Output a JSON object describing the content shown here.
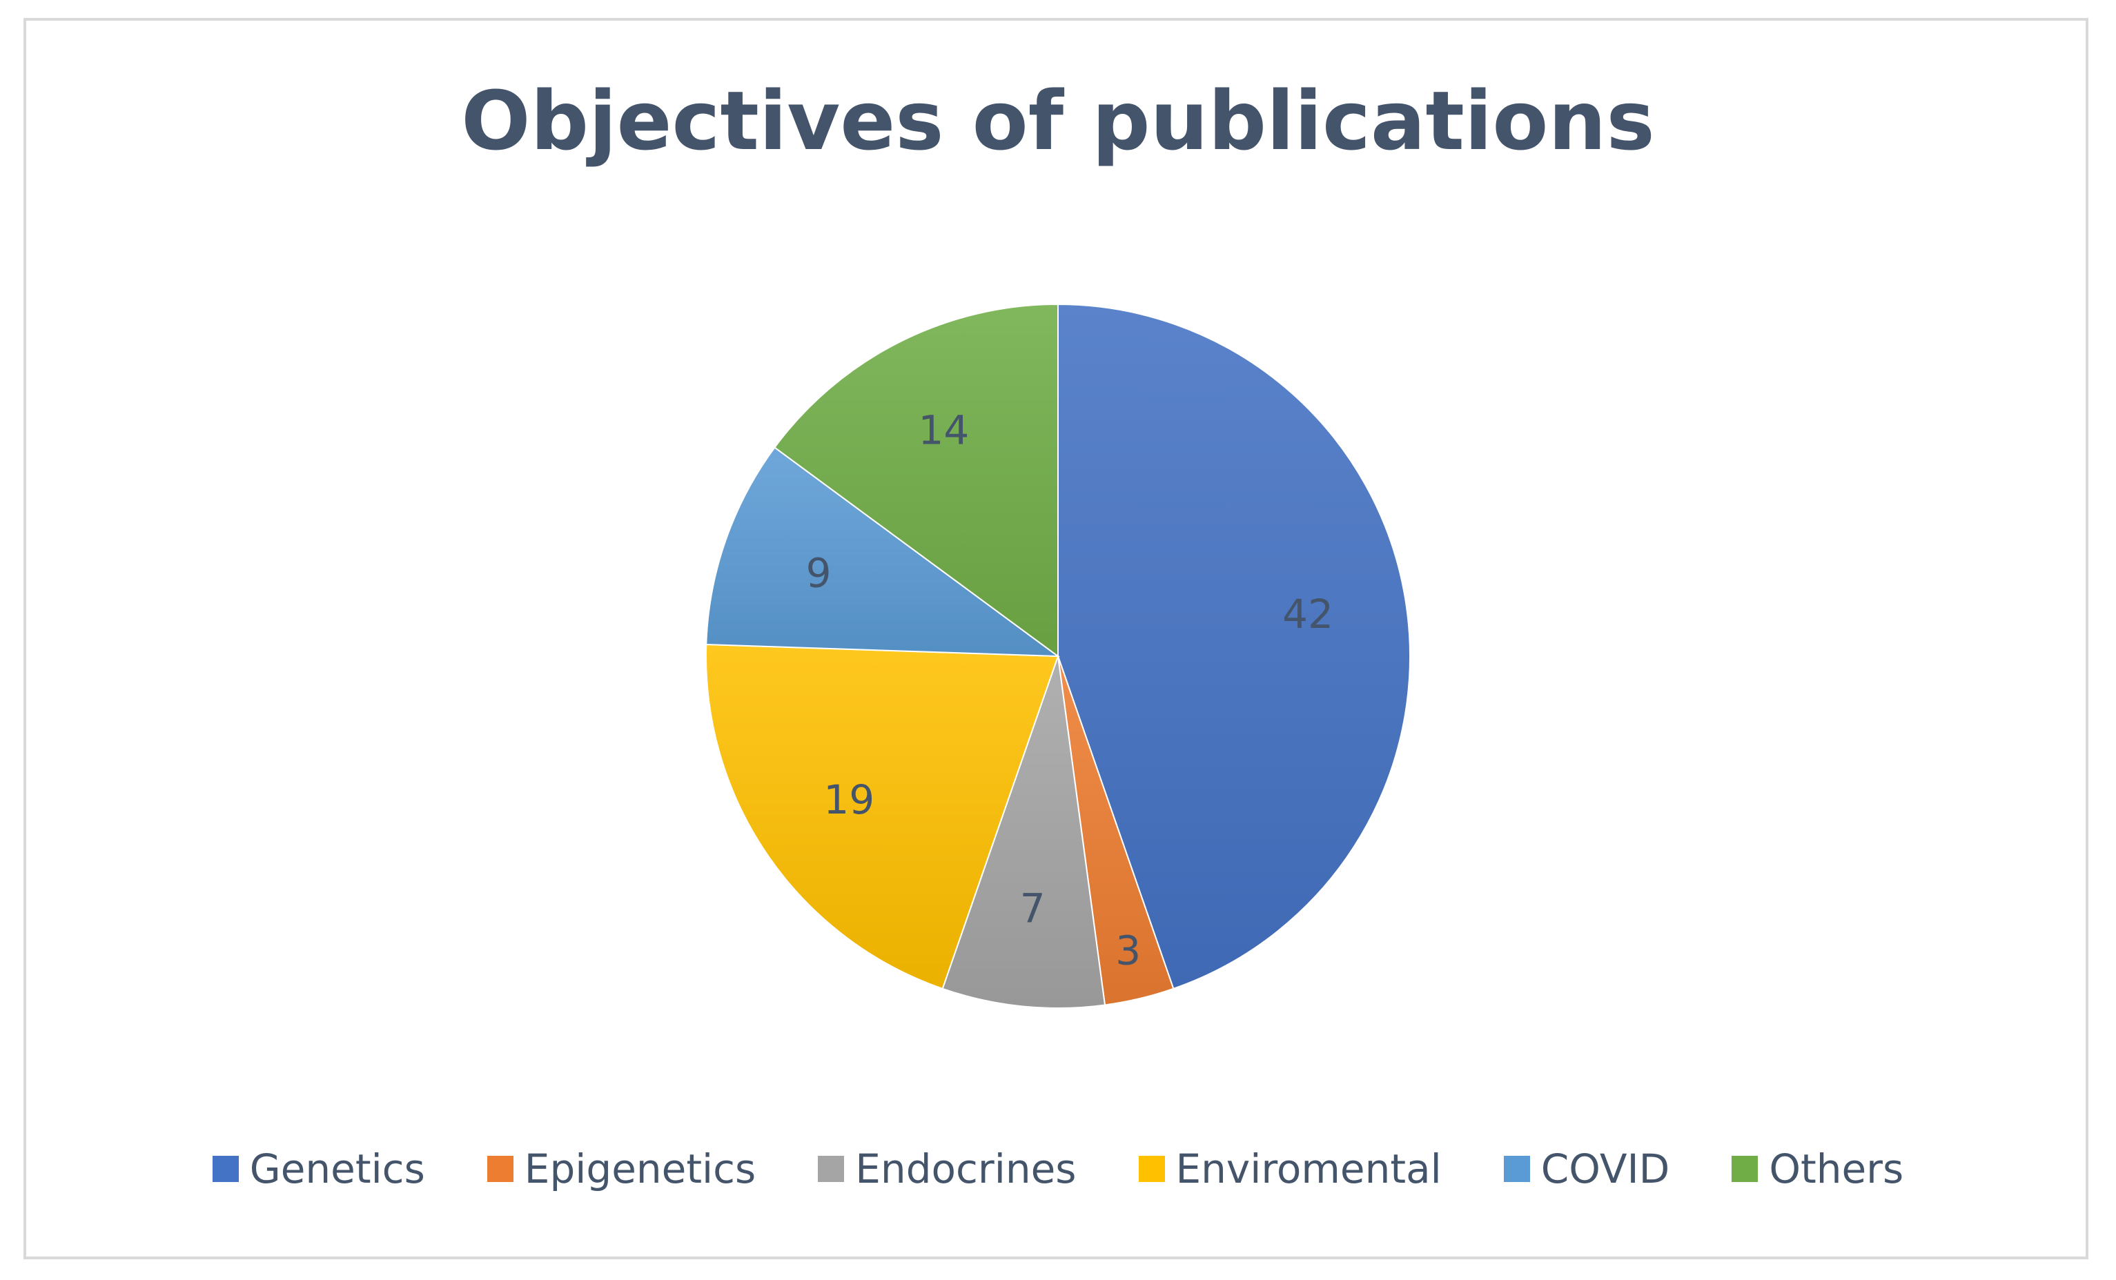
{
  "chart_data": {
    "type": "pie",
    "title": "Objectives of publications",
    "categories": [
      "Genetics",
      "Epigenetics",
      "Endocrines",
      "Enviromental",
      "COVID",
      "Others"
    ],
    "values": [
      42,
      3,
      7,
      19,
      9,
      14
    ],
    "data_labels": [
      "42",
      "3",
      "7",
      "19",
      "9",
      "14"
    ],
    "colors": [
      "#4472c4",
      "#ed7d31",
      "#a5a5a5",
      "#ffc000",
      "#5b9bd5",
      "#70ad47"
    ],
    "legend_position": "bottom",
    "start": "12 o'clock, clockwise"
  }
}
